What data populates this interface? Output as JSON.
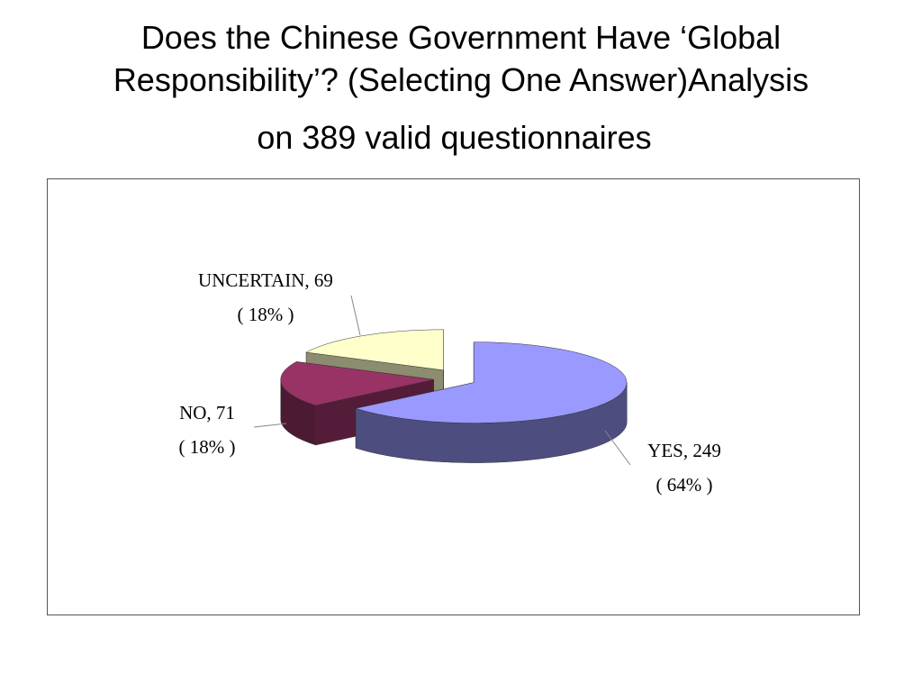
{
  "chart_data": {
    "type": "pie3d",
    "title": "Does the Chinese Government Have ‘Global Responsibility’? (Selecting One Answer)Analysis",
    "subtitle": "on 389 valid questionnaires",
    "categories": [
      "YES",
      "NO",
      "UNCERTAIN"
    ],
    "values": [
      249,
      71,
      69
    ],
    "value_labels": [
      "YES, 249",
      "NO, 71",
      "UNCERTAIN, 69"
    ],
    "percent_labels": [
      "( 64% )",
      "( 18% )",
      "( 18% )"
    ],
    "colors": [
      "#9999ff",
      "#993366",
      "#ffffcc"
    ]
  }
}
